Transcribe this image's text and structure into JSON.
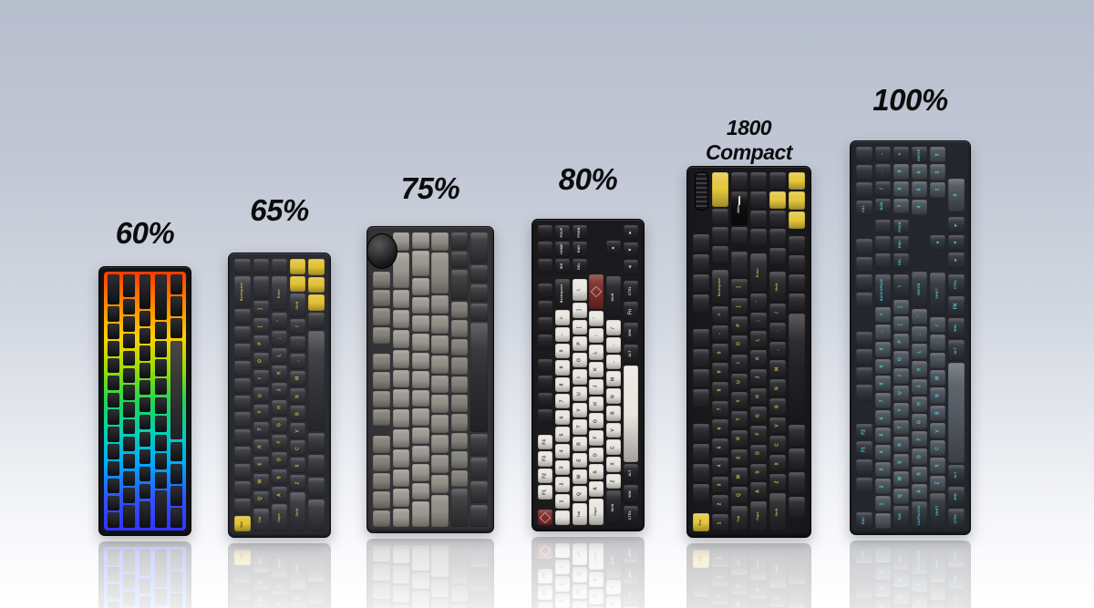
{
  "graphic": {
    "type": "keyboard-size-comparison",
    "background_top": "#b6bdcc",
    "background_bottom": "#ffffff",
    "label_color": "#0c0c0e"
  },
  "keyboards": [
    {
      "name": "60-percent-keyboard",
      "label": "60%",
      "colors": {
        "case": "#131417",
        "key": "#17181c",
        "mod": "#17181c",
        "legend": "#17181c"
      },
      "glow_gradient": [
        "#ff3a00",
        "#ff8800",
        "#ffd000",
        "#9ade00",
        "#22d455",
        "#00d2b4",
        "#00a6ff",
        "#2f55ff",
        "#3333ff"
      ],
      "columns": [
        [
          "2",
          "1",
          "1",
          "1",
          "1",
          "1",
          "1",
          "1",
          "1",
          "1",
          "1",
          "1",
          "1",
          "1"
        ],
        [
          "1.5",
          "1",
          "1",
          "1",
          "1",
          "1",
          "1",
          "1",
          "1",
          "1",
          "1",
          "1",
          "1",
          "1.5"
        ],
        [
          "2.25",
          "1",
          "1",
          "1",
          "1",
          "1",
          "1",
          "1",
          "1",
          "1",
          "1",
          "1",
          "1.75"
        ],
        [
          "2.75",
          "1",
          "1",
          "1",
          "1",
          "1",
          "1",
          "1",
          "1",
          "1",
          "2.25"
        ],
        [
          "1.25",
          "1.25",
          "1.25",
          "6.25:s",
          "1.25",
          "1.25",
          "1.25",
          "1.25"
        ]
      ]
    },
    {
      "name": "65-percent-keyboard",
      "label": "65%",
      "colors": {
        "case": "#2b2c31",
        "key": "#36373d",
        "mod": "#303136",
        "accent": "#e2c235",
        "legend": "#d6b93a",
        "legend-accent": "#4a3c08",
        "space": "#35363b",
        "alpha": "#36373d"
      },
      "columns": [
        [
          "1",
          "2:k:Backspace",
          "1",
          "1",
          "1",
          "1",
          "1",
          "1",
          "1",
          "1",
          "1",
          "1",
          "1",
          "1",
          "1:a:Esc"
        ],
        [
          "1",
          "1.5",
          "1:k:]",
          "1:k:[",
          "1:k:P",
          "1:k:O",
          "1:k:I",
          "1:k:U",
          "1:k:Y",
          "1:k:T",
          "1:k:R",
          "1:k:E",
          "1:k:W",
          "1:k:Q",
          "1.5:k:Tab"
        ],
        [
          "1",
          "2.25:k:Enter",
          "1:k:'",
          "1:k:;",
          "1:k:L",
          "1:k:K",
          "1:k:J",
          "1:k:H",
          "1:k:G",
          "1:k:F",
          "1:k:D",
          "1:k:S",
          "1:k:A",
          "1.75:k:Caps"
        ],
        [
          "1:a",
          "1:a",
          "1.5:k:Shift",
          "1:k:/",
          "1:k:.",
          "1:k:,",
          "1:k:M",
          "1:k:N",
          "1:k:B",
          "1:k:V",
          "1:k:C",
          "1:k:X",
          "1:k:Z",
          "2.5:k:Shift"
        ],
        [
          "1:a",
          "1:a",
          "1:a",
          "1",
          "6.25:s",
          "1.25",
          "1.25",
          "1.25",
          "2"
        ]
      ]
    },
    {
      "name": "75-percent-keyboard",
      "label": "75%",
      "colors": {
        "case": "#333336",
        "key": "#96938b",
        "alpha": "#9a978f",
        "frow": "#827f77",
        "mod": "#39393c",
        "space": "#2f2f32",
        "knob": "#2a2a2d",
        "legend": "#e8e5dd"
      },
      "columns": [
        [
          "2:n",
          "1:l",
          "1:l",
          "1:l",
          "1:l",
          "0.5:x",
          "1:l",
          "1:l",
          "1:l",
          "1:l",
          "0.5:x",
          "1:l",
          "1:l",
          "1:l",
          "1:l",
          "1:l"
        ],
        [
          "1:g",
          "2:g",
          "1:g",
          "1:g",
          "1:g",
          "1:g",
          "1:g",
          "1:g",
          "1:g",
          "1:g",
          "1:g",
          "1:g",
          "1:g",
          "1:g"
        ],
        [
          "1:g",
          "1.5:g",
          "1:g",
          "1:g",
          "1:g",
          "1:g",
          "1:g",
          "1:g",
          "1:g",
          "1:g",
          "1:g",
          "1:g",
          "1:g",
          "1:g",
          "1.5:g"
        ],
        [
          "1:g",
          "2.25:g",
          "1:g",
          "1:g",
          "1:g",
          "1:g",
          "1:g",
          "1:g",
          "1:g",
          "1:g",
          "1:g",
          "1:g",
          "1.75:g"
        ],
        [
          "1:m",
          "1:m",
          "1.75:m",
          "1:g",
          "1:g",
          "1:g",
          "1:g",
          "1:g",
          "1:g",
          "1:g",
          "1:g",
          "1:g",
          "1:g",
          "2.25:m"
        ],
        [
          "1.75:m",
          "1:m",
          "1:m",
          "1:m",
          "6.25:s",
          "1.25:m",
          "1.25:m",
          "1.25:m",
          "1.25:m"
        ]
      ]
    },
    {
      "name": "80-percent-tkl-keyboard",
      "label": "80%",
      "colors": {
        "case": "#1b1b1e",
        "key": "#232327",
        "mod": "#232327",
        "alpha": "#e9e6df",
        "red": "#7c2e2c",
        "space": "#e9e6df",
        "legend": "#e0ddd6",
        "legend-alpha": "#3c3c3c"
      },
      "columns": [
        [
          "1:m",
          "1:m",
          "1:m",
          "0.55:x",
          "1:m",
          "1:m",
          "1:m",
          "1:m",
          "0.55:x",
          "1:m",
          "1:m",
          "1:m",
          "1:m",
          "0.55:x",
          "1:w:F4",
          "1:w:F3",
          "1:w:F2",
          "1:w:F1",
          "0.55:x",
          "1:r"
        ],
        [
          "1:m:PGUP",
          "1:m:HOME",
          "1:m:INS",
          "0.25:x",
          "2:m:Backspace",
          "1:w:=",
          "1:w:-",
          "1:w:0",
          "1:w:9",
          "1:w:8",
          "1:w:7",
          "1:w:6",
          "1:w:5",
          "1:w:4",
          "1:w:3",
          "1:w:2",
          "1:w:1",
          "1:w:`"
        ],
        [
          "1:m:PGDN",
          "1:m:END",
          "1:m:DEL",
          "0.25:x",
          "1.5:w:\\",
          "1:w:]",
          "1:w:[",
          "1:w:P",
          "1:w:O",
          "1:w:I",
          "1:w:U",
          "1:w:Y",
          "1:w:T",
          "1:w:R",
          "1:w:E",
          "1:w:W",
          "1:w:Q",
          "1.5:w:Tab"
        ],
        [
          "3.25:x",
          "2.25:r",
          "1:w:'",
          "1:w:;",
          "1:w:L",
          "1:w:K",
          "1:w:J",
          "1:w:H",
          "1:w:G",
          "1:w:F",
          "1:w:D",
          "1:w:S",
          "1:w:A",
          "1.75:w:Caps"
        ],
        [
          "1:x",
          "1:m:▲",
          "1.25:x",
          "2.75:m:Shift",
          "1:w:/",
          "1:w:.",
          "1:w:,",
          "1:w:M",
          "1:w:N",
          "1:w:B",
          "1:w:V",
          "1:w:C",
          "1:w:X",
          "1:w:Z",
          "2.25:m:Shift"
        ],
        [
          "1:m:►",
          "1:m:▼",
          "1:m:◄",
          "0.25:x",
          "1.25:m:CTRL",
          "1.25:m:Fn",
          "1.25:m:WIN",
          "1.25:m:ALT",
          "6.25:s",
          "1.25:m:ALT",
          "1.25:m:WIN",
          "1.25:m:CTRL"
        ]
      ]
    },
    {
      "name": "1800-compact-keyboard",
      "label": "1800 Compact",
      "label_lines": [
        "1800",
        "Compact"
      ],
      "colors": {
        "case": "#18181b",
        "key": "#28282d",
        "mod": "#28282d",
        "accent": "#e4c73e",
        "legend": "#d8bc40",
        "legend-accent": "#4a3c08",
        "space": "#222226",
        "akko": "#0d0d0f"
      },
      "columns": [
        [
          "2:o",
          "1.2:x",
          "1:m",
          "1:m",
          "1:m",
          "1:m",
          "0.8:x",
          "1:m",
          "1:m",
          "1:m",
          "1:m",
          "0.8:x",
          "1:m",
          "1:m",
          "1:m",
          "1:m",
          "0.5:x",
          "1:a:Esc"
        ],
        [
          "2:a",
          "1:m",
          "1:m",
          "1:m",
          "0.3:x",
          "2:m:Backspace",
          "1:m:=",
          "1:m:-",
          "1:m:0",
          "1:m:9",
          "1:m:8",
          "1:m:7",
          "1:m:6",
          "1:m:5",
          "1:m:4",
          "1:m:3",
          "1:m:2",
          "1:m:1"
        ],
        [
          "1:m",
          "2:b:Akko",
          "1:m",
          "0.3:x",
          "1.5:m",
          "1:m:]",
          "1:m:[",
          "1:m:P",
          "1:m:O",
          "1:m:I",
          "1:m:U",
          "1:m:Y",
          "1:m:T",
          "1:m:R",
          "1:m:E",
          "1:m:W",
          "1:m:Q",
          "1.5:m:Tab"
        ],
        [
          "1:m",
          "1:m",
          "1:m",
          "1:m",
          "0.3:x",
          "2.25:m:Enter",
          "1:m:'",
          "1:m:;",
          "1:m:L",
          "1:m:K",
          "1:m:J",
          "1:m:H",
          "1:m:G",
          "1:m:F",
          "1:m:D",
          "1:m:S",
          "1:m:A",
          "1.75:m:Caps"
        ],
        [
          "1:m",
          "1:a",
          "1:m",
          "1:m",
          "1:m",
          "0.3:x",
          "1.75:m:Shift",
          "1:m:/",
          "1:m:.",
          "1:m:,",
          "1:m:M",
          "1:m:N",
          "1:m:B",
          "1:m:V",
          "1:m:C",
          "1:m:X",
          "1:m:Z",
          "2.25:m:Shift"
        ],
        [
          "1:a",
          "1:a",
          "1:a",
          "0.3:x",
          "1:m",
          "1:m",
          "1:m",
          "1:m",
          "6.25:s",
          "1.25:m",
          "1.25:m",
          "1.25:m",
          "1.25:m",
          "0.75:x"
        ]
      ]
    },
    {
      "name": "100-percent-full-size-keyboard",
      "label": "100%",
      "colors": {
        "case": "#23262c",
        "key": "#30343b",
        "mod": "#30343b",
        "alpha": "#4b5159",
        "space": "#545a63",
        "legend": "#4ed2e0"
      },
      "columns": [
        [
          "1:m",
          "1:m",
          "1:m",
          "1:m:CAL",
          "1.3:x",
          "1:m",
          "1:m",
          "1:m",
          "1:m",
          "1.3:x",
          "1:m",
          "1:m",
          "1:m",
          "1:m",
          "1.3:x",
          "1:m:F2",
          "1:m:F1",
          "1:m",
          "1:m",
          "1.1:x",
          "1:m:ESC"
        ],
        [
          "1:m:-",
          "1:m:.",
          "1:m:/",
          "1:m:NUM",
          "0.25:x",
          "1:m",
          "1:m",
          "1:m",
          "0.25:x",
          "2:m:BACKSPACE",
          "1:d:=",
          "1:d:-",
          "1:d:0",
          "1:d:9",
          "1:d:8",
          "1:d:7",
          "1:d:6",
          "1:d:5",
          "1:d:4",
          "1:d:3",
          "1:d:2",
          "1:d:1",
          "1:d:`"
        ],
        [
          "1:m:+",
          "1:d:9",
          "1:d:8",
          "1:d:7",
          "0.25:x",
          "1:m:PGDN",
          "1:m:END",
          "1:m:DEL",
          "0.25:x",
          "1.5:m:\\",
          "1:d:]",
          "1:d:[",
          "1:d:P",
          "1:d:O",
          "1:d:I",
          "1:d:U",
          "1:d:Y",
          "1:d:T",
          "1:d:R",
          "1:d:E",
          "1:d:W",
          "1:d:Q",
          "1.5:m:TAB"
        ],
        [
          "1:m:ENTER",
          "1:d:6",
          "1:d:5",
          "1:d:4",
          "0.25:x",
          "3.25:x",
          "2.25:m:ENTER",
          "1:d:'",
          "1:d:;",
          "1:d:L",
          "1:d:K",
          "1:d:J",
          "1:d:H",
          "1:d:G",
          "1:d:F",
          "1:d:D",
          "1:d:S",
          "1:d:A",
          "1.75:m:CAPSLOCK"
        ],
        [
          "1:d:3",
          "1:d:2",
          "1:d:1",
          "1.25:x",
          "1:x",
          "1:m:▲",
          "1:x",
          "0.25:x",
          "2.75:m:SHIFT",
          "1:d:/",
          "1:d:.",
          "1:d:,",
          "1:d:M",
          "1:d:N",
          "1:d:B",
          "1:d:V",
          "1:d:C",
          "1:d:X",
          "1:d:Z",
          "2.25:m:SHIFT"
        ],
        [
          "2:x",
          "2:d:0",
          "0.25:x",
          "1:m:►",
          "1:m:▼",
          "1:m:◄",
          "0.25:x",
          "1.25:m:CTRL",
          "1.25:m:FN",
          "1.25:m:WIN",
          "1.25:m:ALT",
          "6.25:s",
          "1.25:m:ALT",
          "1.25:m:WIN",
          "1.25:m:CTRL"
        ]
      ]
    }
  ]
}
